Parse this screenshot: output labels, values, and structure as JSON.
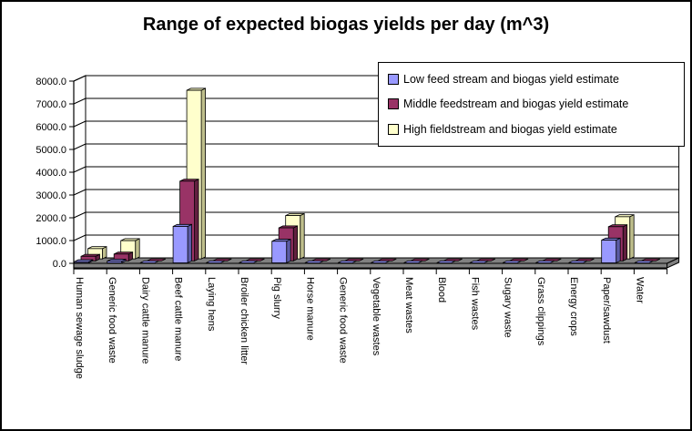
{
  "window": {
    "background": "#FFFFFF",
    "border_color": "#000000"
  },
  "chart_data": {
    "type": "bar",
    "style": "3d-column",
    "title": "Range of expected biogas yields per day (m^3)",
    "categories": [
      "Human sewage sludge",
      "Generic food waste",
      "Dairy cattle manure",
      "Beef cattle manure",
      "Laying hens",
      "Broiler chicken litter",
      "Pig slurry",
      "Horse manure",
      "Generic food waste",
      "Vegetable wastes",
      "Meat wastes",
      "Blood",
      "Fish wastes",
      "Sugary waste",
      "Grass clippings",
      "Energy crops",
      "Paper/sawdust",
      "Water"
    ],
    "series": [
      {
        "name": "Low feed stream and biogas yield estimate",
        "color": "#9999FF",
        "top_color": "#7F7FD9",
        "side_color": "#5C5CA6",
        "values": [
          50,
          75,
          0,
          1600,
          0,
          0,
          950,
          0,
          0,
          0,
          0,
          0,
          0,
          0,
          0,
          0,
          1000,
          0
        ]
      },
      {
        "name": "Middle feedstream and biogas yield estimate",
        "color": "#993366",
        "top_color": "#802B55",
        "side_color": "#61203F",
        "values": [
          200,
          300,
          0,
          3500,
          0,
          0,
          1450,
          0,
          0,
          0,
          0,
          0,
          0,
          0,
          0,
          0,
          1500,
          0
        ]
      },
      {
        "name": "High fieldstream and biogas yield estimate",
        "color": "#FFFFCC",
        "top_color": "#E6E6B3",
        "side_color": "#BFBF8C",
        "values": [
          450,
          800,
          0,
          7400,
          0,
          0,
          1900,
          0,
          0,
          0,
          0,
          0,
          0,
          0,
          0,
          0,
          1850,
          0
        ]
      }
    ],
    "y_axis": {
      "min": 0,
      "max": 8000,
      "step": 1000,
      "tick_labels": [
        "0.0",
        "1000.0",
        "2000.0",
        "3000.0",
        "4000.0",
        "5000.0",
        "6000.0",
        "7000.0",
        "8000.0"
      ]
    },
    "grid": true,
    "legend_position": "top-right",
    "wall_color": "#FFFFFF",
    "floor_color": "#808080"
  }
}
